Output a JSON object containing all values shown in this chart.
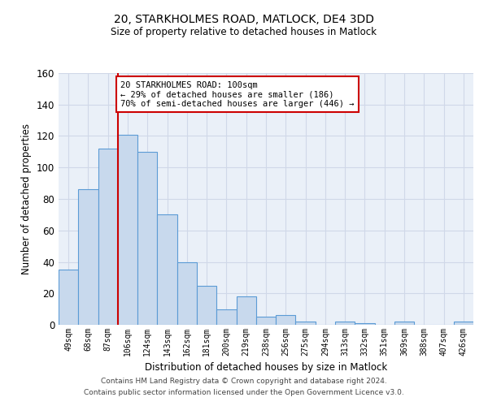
{
  "title": "20, STARKHOLMES ROAD, MATLOCK, DE4 3DD",
  "subtitle": "Size of property relative to detached houses in Matlock",
  "xlabel": "Distribution of detached houses by size in Matlock",
  "ylabel": "Number of detached properties",
  "bar_labels": [
    "49sqm",
    "68sqm",
    "87sqm",
    "106sqm",
    "124sqm",
    "143sqm",
    "162sqm",
    "181sqm",
    "200sqm",
    "219sqm",
    "238sqm",
    "256sqm",
    "275sqm",
    "294sqm",
    "313sqm",
    "332sqm",
    "351sqm",
    "369sqm",
    "388sqm",
    "407sqm",
    "426sqm"
  ],
  "bar_values": [
    35,
    86,
    112,
    121,
    110,
    70,
    40,
    25,
    10,
    18,
    5,
    6,
    2,
    0,
    2,
    1,
    0,
    2,
    0,
    0,
    2
  ],
  "bar_color": "#c8d9ed",
  "bar_edge_color": "#5b9bd5",
  "red_line_index": 3,
  "annotation_text": "20 STARKHOLMES ROAD: 100sqm\n← 29% of detached houses are smaller (186)\n70% of semi-detached houses are larger (446) →",
  "annotation_box_color": "#ffffff",
  "annotation_box_edge_color": "#cc0000",
  "red_line_color": "#cc0000",
  "ylim": [
    0,
    160
  ],
  "yticks": [
    0,
    20,
    40,
    60,
    80,
    100,
    120,
    140,
    160
  ],
  "grid_color": "#d0d8e8",
  "background_color": "#eaf0f8",
  "footer_line1": "Contains HM Land Registry data © Crown copyright and database right 2024.",
  "footer_line2": "Contains public sector information licensed under the Open Government Licence v3.0."
}
